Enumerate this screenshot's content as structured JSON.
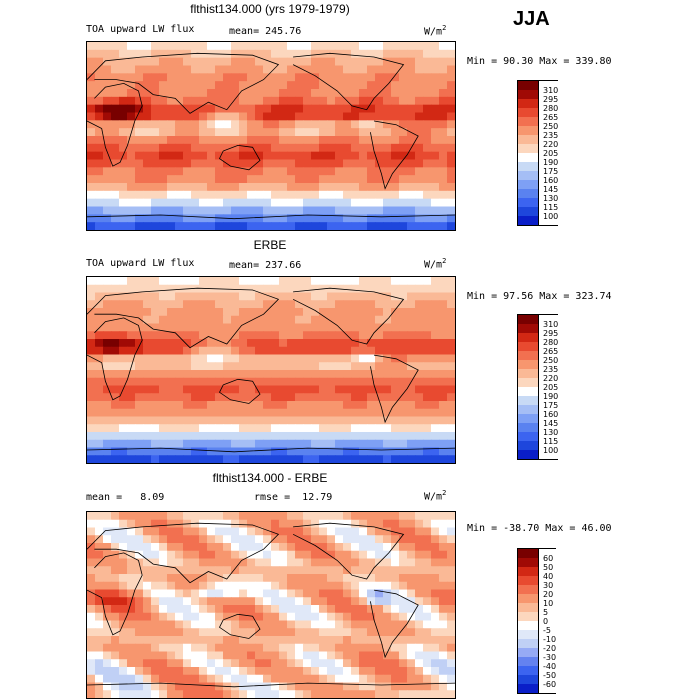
{
  "season": "JJA",
  "colors": {
    "lw": [
      "#000080",
      "#0a1ec8",
      "#1e46dc",
      "#3c64f0",
      "#5a82f0",
      "#7ea0f5",
      "#a5bef5",
      "#c8daf5",
      "#ffffff",
      "#fcd7be",
      "#fab996",
      "#f7966e",
      "#f27050",
      "#e84a30",
      "#d22814",
      "#a00a05",
      "#780000"
    ],
    "diff": [
      "#000080",
      "#0a1ec8",
      "#1e46dc",
      "#3c64f0",
      "#6482f0",
      "#96aaf5",
      "#c0d0f5",
      "#e0e8f8",
      "#ffffff",
      "#fcd7be",
      "#fab996",
      "#f7966e",
      "#f27050",
      "#e84a30",
      "#d22814",
      "#a00a05",
      "#780000"
    ]
  },
  "chart_data": [
    {
      "type": "heatmap",
      "title": "flthist134.000 (yrs 1979-1979)",
      "subtitle_left": "TOA upward LW flux",
      "mean_label": "mean=",
      "mean": "245.76",
      "units": "W/m",
      "units_sup": "2",
      "min_label": "Min =",
      "min": "90.30",
      "max_label": "Max =",
      "max": "339.80",
      "levels": [
        "310",
        "295",
        "280",
        "265",
        "250",
        "235",
        "220",
        "205",
        "190",
        "175",
        "160",
        "145",
        "130",
        "115",
        "100"
      ]
    },
    {
      "type": "heatmap",
      "title": "ERBE",
      "subtitle_left": "TOA upward LW flux",
      "mean_label": "mean=",
      "mean": "237.66",
      "units": "W/m",
      "units_sup": "2",
      "min_label": "Min =",
      "min": "97.56",
      "max_label": "Max =",
      "max": "323.74",
      "levels": [
        "310",
        "295",
        "280",
        "265",
        "250",
        "235",
        "220",
        "205",
        "190",
        "175",
        "160",
        "145",
        "130",
        "115",
        "100"
      ]
    },
    {
      "type": "heatmap",
      "title": "flthist134.000 - ERBE",
      "mean_label": "mean =",
      "mean": "8.09",
      "rmse_label": "rmse =",
      "rmse": "12.79",
      "units": "W/m",
      "units_sup": "2",
      "min_label": "Min =",
      "min": "-38.70",
      "max_label": "Max =",
      "max": "46.00",
      "levels": [
        "60",
        "50",
        "40",
        "30",
        "20",
        "10",
        "5",
        "0",
        "-5",
        "-10",
        "-20",
        "-30",
        "-40",
        "-50",
        "-60"
      ]
    }
  ]
}
